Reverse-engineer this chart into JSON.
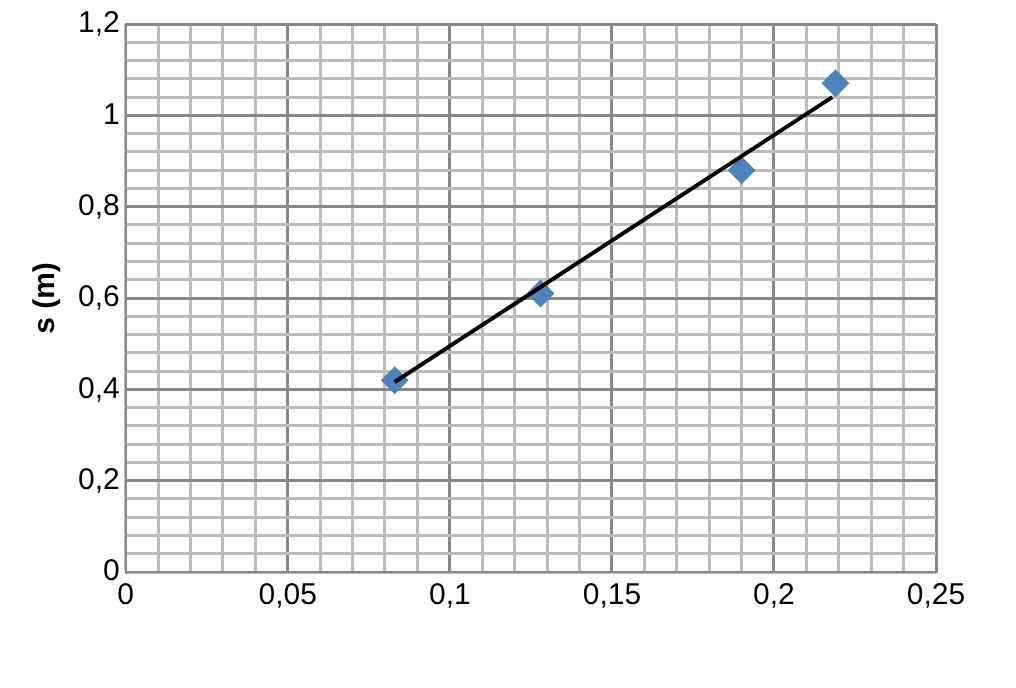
{
  "chart_data": {
    "type": "scatter",
    "ylabel": "s (m)",
    "grid": true,
    "marker": "diamond",
    "legend": false,
    "xlim": [
      0,
      0.25
    ],
    "ylim": [
      0,
      1.2
    ],
    "xticks": [
      0,
      {
        "value": 0.01,
        "label": null
      },
      {
        "value": 0.02,
        "label": null
      },
      {
        "value": 0.03,
        "label": null
      },
      {
        "value": 0.04,
        "label": null
      },
      {
        "value": 0.05,
        "label": "0,05"
      },
      {
        "value": 0.06,
        "label": null
      },
      {
        "value": 0.07,
        "label": null
      },
      {
        "value": 0.08,
        "label": null
      },
      {
        "value": 0.09,
        "label": null
      },
      {
        "value": 0.1,
        "label": "0,1"
      },
      {
        "value": 0.11,
        "label": null
      },
      {
        "value": 0.12,
        "label": null
      },
      {
        "value": 0.13,
        "label": null
      },
      {
        "value": 0.14,
        "label": null
      },
      {
        "value": 0.15,
        "label": "0,15"
      },
      {
        "value": 0.16,
        "label": null
      },
      {
        "value": 0.17,
        "label": null
      },
      {
        "value": 0.18,
        "label": null
      },
      {
        "value": 0.19,
        "label": null
      },
      {
        "value": 0.2,
        "label": "0,2"
      },
      {
        "value": 0.21,
        "label": null
      },
      {
        "value": 0.22,
        "label": null
      },
      {
        "value": 0.23,
        "label": null
      },
      {
        "value": 0.24,
        "label": null
      },
      {
        "value": 0.25,
        "label": "0,25"
      }
    ],
    "yticks": [
      0,
      {
        "value": 0.04,
        "label": null
      },
      {
        "value": 0.08,
        "label": null
      },
      {
        "value": 0.12,
        "label": null
      },
      {
        "value": 0.16,
        "label": null
      },
      {
        "value": 0.2,
        "label": "0,2"
      },
      {
        "value": 0.24,
        "label": null
      },
      {
        "value": 0.28,
        "label": null
      },
      {
        "value": 0.32,
        "label": null
      },
      {
        "value": 0.36,
        "label": null
      },
      {
        "value": 0.4,
        "label": "0,4"
      },
      {
        "value": 0.44,
        "label": null
      },
      {
        "value": 0.48,
        "label": null
      },
      {
        "value": 0.52,
        "label": null
      },
      {
        "value": 0.56,
        "label": null
      },
      {
        "value": 0.6,
        "label": "0,6"
      },
      {
        "value": 0.64,
        "label": null
      },
      {
        "value": 0.68,
        "label": null
      },
      {
        "value": 0.72,
        "label": null
      },
      {
        "value": 0.76,
        "label": null
      },
      {
        "value": 0.8,
        "label": "0,8"
      },
      {
        "value": 0.84,
        "label": null
      },
      {
        "value": 0.88,
        "label": null
      },
      {
        "value": 0.92,
        "label": null
      },
      {
        "value": 0.96,
        "label": null
      },
      {
        "value": 1,
        "label": "1"
      },
      {
        "value": 1.04,
        "label": null
      },
      {
        "value": 1.08,
        "label": null
      },
      {
        "value": 1.12,
        "label": null
      },
      {
        "value": 1.16,
        "label": null
      },
      {
        "value": 1.2,
        "label": "1,2"
      }
    ],
    "series": [
      {
        "color": "#4f81bd",
        "x": [
          0.083,
          0.128,
          0.19,
          0.219
        ],
        "values": [
          0.42,
          0.61,
          0.88,
          1.07
        ]
      },
      {
        "type": "line",
        "color": "#000000",
        "marker": "none",
        "x": [
          0.083,
          0.218
        ],
        "values": [
          0.416,
          1.04
        ]
      }
    ]
  }
}
